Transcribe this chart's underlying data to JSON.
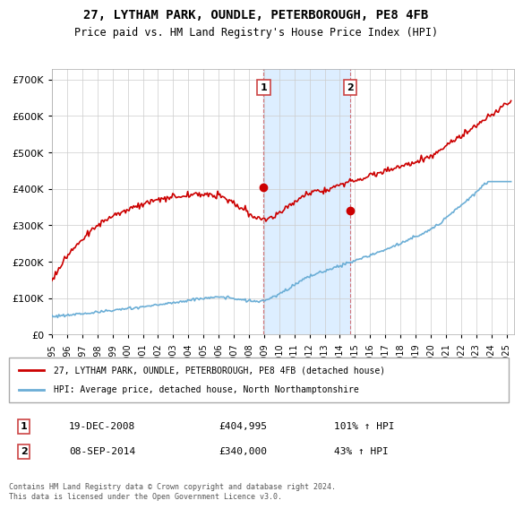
{
  "title": "27, LYTHAM PARK, OUNDLE, PETERBOROUGH, PE8 4FB",
  "subtitle": "Price paid vs. HM Land Registry's House Price Index (HPI)",
  "xlim_start": 1995.0,
  "xlim_end": 2025.5,
  "ylim": [
    0,
    730000
  ],
  "yticks": [
    0,
    100000,
    200000,
    300000,
    400000,
    500000,
    600000,
    700000
  ],
  "ytick_labels": [
    "£0",
    "£100K",
    "£200K",
    "£300K",
    "£400K",
    "£500K",
    "£600K",
    "£700K"
  ],
  "sale1_x": 2008.97,
  "sale1_y": 404995,
  "sale1_label": "1",
  "sale2_x": 2014.69,
  "sale2_y": 340000,
  "sale2_label": "2",
  "shade_x1": 2008.97,
  "shade_x2": 2014.69,
  "hpi_color": "#6baed6",
  "price_color": "#cc0000",
  "shade_color": "#ddeeff",
  "grid_color": "#cccccc",
  "legend_line1": "27, LYTHAM PARK, OUNDLE, PETERBOROUGH, PE8 4FB (detached house)",
  "legend_line2": "HPI: Average price, detached house, North Northamptonshire",
  "table_row1_num": "1",
  "table_row1_date": "19-DEC-2008",
  "table_row1_price": "£404,995",
  "table_row1_hpi": "101% ↑ HPI",
  "table_row2_num": "2",
  "table_row2_date": "08-SEP-2014",
  "table_row2_price": "£340,000",
  "table_row2_hpi": "43% ↑ HPI",
  "footnote": "Contains HM Land Registry data © Crown copyright and database right 2024.\nThis data is licensed under the Open Government Licence v3.0."
}
